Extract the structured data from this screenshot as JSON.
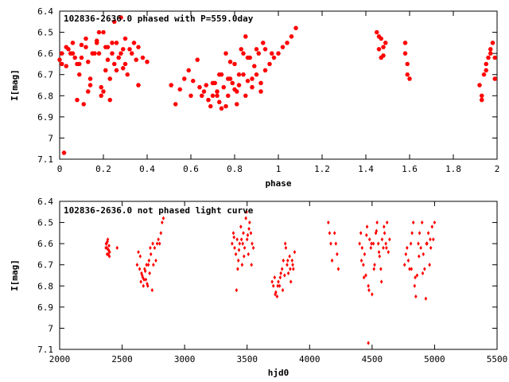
{
  "chart_data": [
    {
      "type": "scatter",
      "title": "102836-2636.0 phased with P=559.0day",
      "xlabel": "phase",
      "ylabel": "I[mag]",
      "xlim": [
        0,
        2
      ],
      "ylim": [
        7.1,
        6.4
      ],
      "y_inverted": true,
      "grid": false,
      "marker_color": "#ff0000",
      "marker": "filled-hexagon",
      "x_ticks": [
        0,
        0.2,
        0.4,
        0.6,
        0.8,
        1,
        1.2,
        1.4,
        1.6,
        1.8,
        2
      ],
      "x_tick_labels": [
        "0",
        "0.2",
        "0.4",
        "0.6",
        "0.8",
        "1",
        "1.2",
        "1.4",
        "1.6",
        "1.8",
        "2"
      ],
      "y_ticks": [
        6.4,
        6.5,
        6.6,
        6.7,
        6.8,
        6.9,
        7,
        7.1
      ],
      "y_tick_labels": [
        "6.4",
        "6.5",
        "6.6",
        "6.7",
        "6.8",
        "6.9",
        "7",
        "7.1"
      ],
      "series": [
        {
          "x": [
            0.0,
            0.01,
            0.02,
            0.03,
            0.03,
            0.05,
            0.06,
            0.07,
            0.08,
            0.09,
            0.1,
            0.12,
            0.13,
            0.14,
            0.15,
            0.17,
            0.18,
            0.19,
            0.2,
            0.21,
            0.22,
            0.23,
            0.24,
            0.25,
            0.26,
            0.27,
            0.28,
            0.29,
            0.3,
            0.31,
            0.33,
            0.34,
            0.35,
            0.36,
            0.38,
            0.4,
            0.04,
            0.08,
            0.1,
            0.12,
            0.14,
            0.16,
            0.18,
            0.2,
            0.22,
            0.24,
            0.26,
            0.28,
            0.3,
            0.06,
            0.11,
            0.19,
            0.23,
            0.27,
            0.32,
            0.36,
            0.13,
            0.21,
            0.17,
            0.09,
            0.25,
            0.29,
            0.01,
            0.51,
            0.53,
            0.55,
            0.57,
            0.59,
            0.61,
            0.63,
            0.65,
            0.67,
            0.69,
            0.7,
            0.71,
            0.72,
            0.73,
            0.74,
            0.75,
            0.76,
            0.77,
            0.78,
            0.79,
            0.8,
            0.81,
            0.82,
            0.83,
            0.84,
            0.85,
            0.86,
            0.87,
            0.88,
            0.89,
            0.9,
            0.91,
            0.92,
            0.93,
            0.94,
            0.96,
            0.98,
            1.0,
            1.02,
            1.04,
            1.06,
            1.08,
            0.64,
            0.68,
            0.72,
            0.76,
            0.8,
            0.84,
            0.88,
            0.92,
            0.7,
            0.74,
            0.78,
            0.82,
            0.86,
            0.9,
            0.66,
            0.73,
            0.77,
            0.81,
            0.85,
            0.6,
            0.97,
            0.94,
            1.45,
            1.46,
            1.46,
            1.47,
            1.47,
            1.48,
            1.48,
            1.49,
            1.58,
            1.58,
            1.59,
            1.59,
            1.6,
            1.92,
            1.93,
            1.94,
            1.95,
            1.96,
            1.97,
            1.98,
            1.99,
            1.93,
            1.95,
            1.97,
            1.99
          ],
          "y": [
            6.63,
            6.6,
            7.07,
            6.66,
            6.57,
            6.6,
            6.55,
            6.62,
            6.82,
            6.7,
            6.62,
            6.57,
            6.64,
            6.75,
            6.6,
            6.55,
            6.6,
            6.8,
            6.5,
            6.68,
            6.57,
            6.72,
            6.6,
            6.65,
            6.55,
            6.62,
            6.43,
            6.58,
            6.65,
            6.7,
            6.6,
            6.55,
            6.63,
            6.57,
            6.62,
            6.64,
            6.58,
            6.65,
            6.56,
            6.53,
            6.72,
            6.6,
            6.5,
            6.78,
            6.63,
            6.55,
            6.68,
            6.6,
            6.53,
            6.6,
            6.84,
            6.76,
            6.82,
            6.62,
            6.58,
            6.75,
            6.78,
            6.57,
            6.54,
            6.65,
            6.45,
            6.67,
            6.65,
            6.75,
            6.84,
            6.77,
            6.72,
            6.68,
            6.73,
            6.63,
            6.8,
            6.75,
            6.85,
            6.8,
            6.74,
            6.78,
            6.83,
            6.7,
            6.76,
            6.6,
            6.8,
            6.72,
            6.74,
            6.65,
            6.78,
            6.75,
            6.58,
            6.7,
            6.8,
            6.73,
            6.62,
            6.76,
            6.66,
            6.7,
            6.6,
            6.74,
            6.55,
            6.68,
            6.65,
            6.62,
            6.6,
            6.57,
            6.55,
            6.52,
            6.48,
            6.76,
            6.82,
            6.8,
            6.85,
            6.77,
            6.6,
            6.72,
            6.78,
            6.74,
            6.86,
            6.64,
            6.7,
            6.62,
            6.58,
            6.78,
            6.7,
            6.72,
            6.84,
            6.52,
            6.8,
            6.6,
            6.58,
            6.5,
            6.52,
            6.58,
            6.53,
            6.62,
            6.57,
            6.61,
            6.55,
            6.55,
            6.6,
            6.65,
            6.7,
            6.72,
            6.75,
            6.8,
            6.7,
            6.65,
            6.62,
            6.6,
            6.55,
            6.62,
            6.82,
            6.68,
            6.58,
            6.72
          ]
        }
      ]
    },
    {
      "type": "scatter",
      "title": "102836-2636.0 not phased light curve",
      "xlabel": "hjd0",
      "ylabel": "I[mag]",
      "xlim": [
        2000,
        5500
      ],
      "ylim": [
        7.1,
        6.4
      ],
      "y_inverted": true,
      "grid": false,
      "marker_color": "#ff0000",
      "marker": "filled-diamond",
      "x_ticks": [
        2000,
        2500,
        3000,
        3500,
        4000,
        4500,
        5000,
        5500
      ],
      "x_tick_labels": [
        "2000",
        "2500",
        "3000",
        "3500",
        "4000",
        "4500",
        "5000",
        "5500"
      ],
      "y_ticks": [
        6.4,
        6.5,
        6.6,
        6.7,
        6.8,
        6.9,
        7,
        7.1
      ],
      "y_tick_labels": [
        "6.4",
        "6.5",
        "6.6",
        "6.7",
        "6.8",
        "6.9",
        "7",
        "7.1"
      ],
      "series": [
        {
          "x": [
            2370,
            2375,
            2380,
            2385,
            2390,
            2395,
            2400,
            2372,
            2378,
            2382,
            2388,
            2392,
            2398,
            2460,
            2620,
            2630,
            2640,
            2650,
            2660,
            2670,
            2680,
            2690,
            2700,
            2710,
            2720,
            2730,
            2740,
            2750,
            2760,
            2770,
            2780,
            2790,
            2800,
            2810,
            2820,
            2830,
            2645,
            2665,
            2685,
            2705,
            2725,
            2745,
            2655,
            2675,
            2695,
            2715,
            3380,
            3390,
            3400,
            3410,
            3420,
            3430,
            3440,
            3450,
            3460,
            3470,
            3480,
            3490,
            3500,
            3510,
            3520,
            3530,
            3540,
            3550,
            3395,
            3415,
            3435,
            3455,
            3475,
            3495,
            3515,
            3535,
            3425,
            3465,
            3505,
            3700,
            3710,
            3720,
            3730,
            3740,
            3750,
            3760,
            3770,
            3780,
            3790,
            3800,
            3810,
            3820,
            3830,
            3840,
            3850,
            3860,
            3870,
            3880,
            3725,
            3745,
            3765,
            3785,
            3805,
            3825,
            3845,
            3865,
            4150,
            4160,
            4170,
            4180,
            4200,
            4210,
            4220,
            4230,
            4400,
            4410,
            4420,
            4430,
            4440,
            4450,
            4460,
            4470,
            4480,
            4490,
            4500,
            4510,
            4520,
            4530,
            4540,
            4550,
            4560,
            4570,
            4580,
            4590,
            4600,
            4610,
            4620,
            4630,
            4640,
            4415,
            4435,
            4455,
            4475,
            4495,
            4515,
            4535,
            4555,
            4575,
            4595,
            4615,
            4470,
            4760,
            4770,
            4780,
            4790,
            4800,
            4810,
            4820,
            4830,
            4840,
            4850,
            4860,
            4870,
            4880,
            4890,
            4900,
            4910,
            4920,
            4930,
            4940,
            4950,
            4960,
            4970,
            4980,
            4990,
            5000,
            4815,
            4845,
            4875,
            4905,
            4935,
            4965
          ],
          "y": [
            6.62,
            6.6,
            6.65,
            6.58,
            6.63,
            6.61,
            6.64,
            6.6,
            6.62,
            6.59,
            6.65,
            6.63,
            6.66,
            6.62,
            6.7,
            6.64,
            6.72,
            6.78,
            6.75,
            6.8,
            6.72,
            6.77,
            6.79,
            6.7,
            6.74,
            6.65,
            6.82,
            6.7,
            6.62,
            6.68,
            6.6,
            6.58,
            6.6,
            6.55,
            6.5,
            6.48,
            6.66,
            6.76,
            6.73,
            6.8,
            6.62,
            6.6,
            6.74,
            6.77,
            6.7,
            6.68,
            6.6,
            6.55,
            6.62,
            6.65,
            6.58,
            6.68,
            6.6,
            6.52,
            6.7,
            6.55,
            6.62,
            6.48,
            6.58,
            6.65,
            6.5,
            6.55,
            6.6,
            6.62,
            6.57,
            6.82,
            6.63,
            6.58,
            6.66,
            6.45,
            6.53,
            6.7,
            6.72,
            6.6,
            6.56,
            6.78,
            6.8,
            6.76,
            6.83,
            6.85,
            6.78,
            6.8,
            6.74,
            6.72,
            6.68,
            6.75,
            6.62,
            6.7,
            6.74,
            6.66,
            6.78,
            6.68,
            6.72,
            6.64,
            6.84,
            6.8,
            6.76,
            6.82,
            6.6,
            6.68,
            6.72,
            6.7,
            6.5,
            6.55,
            6.6,
            6.68,
            6.55,
            6.6,
            6.65,
            6.72,
            6.6,
            6.55,
            6.62,
            6.7,
            6.65,
            6.75,
            6.52,
            6.8,
            6.58,
            6.62,
            6.84,
            6.6,
            6.7,
            6.55,
            6.5,
            6.6,
            6.66,
            6.72,
            6.58,
            6.62,
            6.55,
            6.6,
            6.5,
            6.64,
            6.58,
            6.68,
            6.76,
            6.56,
            6.82,
            6.6,
            6.72,
            6.54,
            6.64,
            6.78,
            6.52,
            6.62,
            7.07,
            6.7,
            6.65,
            6.62,
            6.68,
            6.72,
            6.6,
            6.55,
            6.5,
            6.8,
            6.85,
            6.75,
            6.6,
            6.55,
            6.62,
            6.5,
            6.65,
            6.72,
            6.86,
            6.6,
            6.55,
            6.7,
            6.62,
            6.52,
            6.58,
            6.5,
            6.72,
            6.76,
            6.66,
            6.74,
            6.6,
            6.58
          ]
        }
      ]
    }
  ]
}
